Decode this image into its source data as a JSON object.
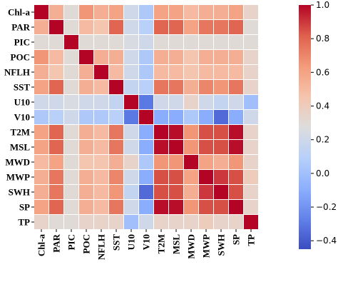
{
  "chart_data": {
    "type": "heatmap",
    "title": "",
    "xlabel": "",
    "ylabel": "",
    "variables": [
      "Chl-a",
      "PAR",
      "PIC",
      "POC",
      "NFLH",
      "SST",
      "U10",
      "V10",
      "T2M",
      "MSL",
      "MWD",
      "MWP",
      "SWH",
      "SP",
      "TP"
    ],
    "matrix": [
      [
        1.0,
        0.55,
        0.3,
        0.65,
        0.55,
        0.6,
        0.2,
        0.05,
        0.6,
        0.6,
        0.5,
        0.55,
        0.55,
        0.6,
        0.35
      ],
      [
        0.55,
        1.0,
        0.3,
        0.5,
        0.45,
        0.8,
        0.2,
        0.1,
        0.8,
        0.8,
        0.6,
        0.75,
        0.75,
        0.8,
        0.3
      ],
      [
        0.3,
        0.3,
        1.0,
        0.3,
        0.3,
        0.3,
        0.25,
        0.2,
        0.3,
        0.3,
        0.3,
        0.3,
        0.3,
        0.3,
        0.3
      ],
      [
        0.65,
        0.5,
        0.3,
        1.0,
        0.55,
        0.55,
        0.2,
        0.05,
        0.55,
        0.55,
        0.45,
        0.55,
        0.55,
        0.55,
        0.35
      ],
      [
        0.55,
        0.45,
        0.3,
        0.55,
        1.0,
        0.5,
        0.2,
        0.05,
        0.5,
        0.5,
        0.45,
        0.5,
        0.5,
        0.5,
        0.35
      ],
      [
        0.6,
        0.8,
        0.3,
        0.55,
        0.5,
        1.0,
        0.15,
        0.1,
        0.75,
        0.75,
        0.55,
        0.7,
        0.65,
        0.75,
        0.35
      ],
      [
        0.2,
        0.2,
        0.25,
        0.2,
        0.2,
        0.15,
        1.0,
        -0.3,
        0.2,
        0.2,
        0.35,
        0.2,
        0.15,
        0.2,
        0.0
      ],
      [
        0.05,
        0.1,
        0.2,
        0.05,
        0.05,
        0.1,
        -0.3,
        1.0,
        -0.1,
        -0.1,
        0.05,
        -0.1,
        -0.35,
        -0.1,
        0.2
      ],
      [
        0.6,
        0.8,
        0.3,
        0.55,
        0.5,
        0.75,
        0.2,
        -0.1,
        1.0,
        0.98,
        0.65,
        0.85,
        0.85,
        0.98,
        0.35
      ],
      [
        0.6,
        0.8,
        0.3,
        0.55,
        0.5,
        0.75,
        0.2,
        -0.1,
        0.98,
        1.0,
        0.65,
        0.85,
        0.85,
        0.98,
        0.35
      ],
      [
        0.5,
        0.6,
        0.3,
        0.45,
        0.45,
        0.55,
        0.35,
        0.05,
        0.65,
        0.65,
        1.0,
        0.6,
        0.55,
        0.65,
        0.35
      ],
      [
        0.55,
        0.75,
        0.3,
        0.55,
        0.5,
        0.7,
        0.2,
        -0.1,
        0.85,
        0.85,
        0.6,
        1.0,
        0.9,
        0.85,
        0.4
      ],
      [
        0.55,
        0.75,
        0.3,
        0.55,
        0.5,
        0.65,
        0.15,
        -0.35,
        0.85,
        0.85,
        0.55,
        0.9,
        1.0,
        0.85,
        0.35
      ],
      [
        0.6,
        0.8,
        0.3,
        0.55,
        0.5,
        0.75,
        0.2,
        -0.1,
        0.98,
        0.98,
        0.65,
        0.85,
        0.85,
        1.0,
        0.35
      ],
      [
        0.35,
        0.3,
        0.3,
        0.35,
        0.35,
        0.35,
        0.0,
        0.2,
        0.35,
        0.35,
        0.35,
        0.4,
        0.35,
        0.35,
        1.0
      ]
    ],
    "colorbar": {
      "range": [
        -0.45,
        1.0
      ],
      "ticks": [
        1.0,
        0.8,
        0.6,
        0.4,
        0.2,
        0.0,
        -0.2,
        -0.4
      ],
      "tick_labels": [
        "1.0",
        "0.8",
        "0.6",
        "0.4",
        "0.2",
        "0.0",
        "−0.2",
        "−0.4"
      ],
      "colormap": "coolwarm"
    },
    "grid": true,
    "legend": "colorbar-right"
  }
}
